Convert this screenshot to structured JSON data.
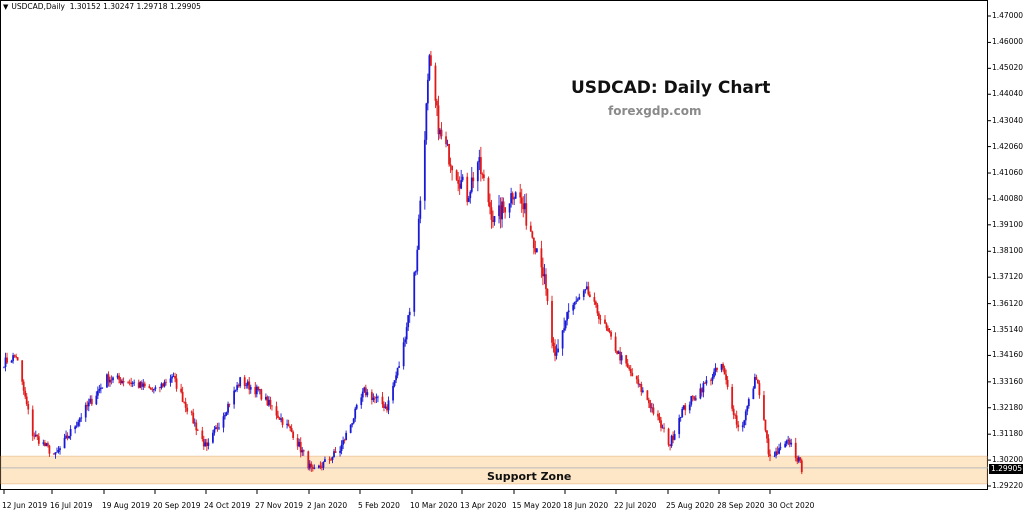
{
  "header": {
    "symbol": "USDCAD,Daily",
    "ohlc": "1.30152 1.30247 1.29718 1.29905"
  },
  "watermark": {
    "title": "USDCAD: Daily Chart",
    "site": "forexgdp.com"
  },
  "support_zone_label": "Support Zone",
  "current_price_label": "1.29905",
  "colors": {
    "bull": "#1a1ad6",
    "bear": "#e01818",
    "zone": "#fde7c7",
    "zone_border": "#e7b98a",
    "price_line": "#b8b8b8"
  },
  "y_ticks": [
    "1.47000",
    "1.46000",
    "1.45020",
    "1.44040",
    "1.43040",
    "1.42060",
    "1.41060",
    "1.40080",
    "1.39100",
    "1.38100",
    "1.37120",
    "1.36120",
    "1.35140",
    "1.34160",
    "1.33160",
    "1.32180",
    "1.31180",
    "1.30200",
    "1.29220"
  ],
  "x_ticks": [
    "12 Jun 2019",
    "16 Jul 2019",
    "19 Aug 2019",
    "20 Sep 2019",
    "24 Oct 2019",
    "27 Nov 2019",
    "2 Jan 2020",
    "5 Feb 2020",
    "10 Mar 2020",
    "13 Apr 2020",
    "15 May 2020",
    "18 Jun 2020",
    "22 Jul 2020",
    "25 Aug 2020",
    "28 Sep 2020",
    "30 Oct 2020"
  ],
  "chart_data": {
    "type": "candlestick",
    "symbol": "USDCAD",
    "timeframe": "Daily",
    "ylim": [
      1.2922,
      1.475
    ],
    "grid": false,
    "last_bar": {
      "open": 1.30152,
      "high": 1.30247,
      "low": 1.29718,
      "close": 1.29905
    },
    "current_price": 1.29905,
    "support_zone": [
      1.293,
      1.3035
    ],
    "approx_close_path": [
      [
        "12 Jun 2019",
        1.339
      ],
      [
        "20 Jun 2019",
        1.3415
      ],
      [
        "1 Jul 2019",
        1.312
      ],
      [
        "16 Jul 2019",
        1.3035
      ],
      [
        "1 Aug 2019",
        1.318
      ],
      [
        "19 Aug 2019",
        1.333
      ],
      [
        "1 Sep 2019",
        1.332
      ],
      [
        "20 Sep 2019",
        1.328
      ],
      [
        "1 Oct 2019",
        1.334
      ],
      [
        "24 Oct 2019",
        1.306
      ],
      [
        "1 Nov 2019",
        1.316
      ],
      [
        "15 Nov 2019",
        1.332
      ],
      [
        "27 Nov 2019",
        1.328
      ],
      [
        "20 Dec 2019",
        1.312
      ],
      [
        "2 Jan 2020",
        1.297
      ],
      [
        "20 Jan 2020",
        1.306
      ],
      [
        "5 Feb 2020",
        1.328
      ],
      [
        "20 Feb 2020",
        1.322
      ],
      [
        "1 Mar 2020",
        1.342
      ],
      [
        "10 Mar 2020",
        1.375
      ],
      [
        "19 Mar 2020",
        1.452
      ],
      [
        "26 Mar 2020",
        1.425
      ],
      [
        "13 Apr 2020",
        1.402
      ],
      [
        "20 Apr 2020",
        1.415
      ],
      [
        "1 May 2020",
        1.392
      ],
      [
        "15 May 2020",
        1.405
      ],
      [
        "1 Jun 2020",
        1.378
      ],
      [
        "10 Jun 2020",
        1.338
      ],
      [
        "18 Jun 2020",
        1.358
      ],
      [
        "1 Jul 2020",
        1.366
      ],
      [
        "22 Jul 2020",
        1.342
      ],
      [
        "10 Aug 2020",
        1.325
      ],
      [
        "25 Aug 2020",
        1.308
      ],
      [
        "1 Sep 2020",
        1.32
      ],
      [
        "28 Sep 2020",
        1.338
      ],
      [
        "10 Oct 2020",
        1.312
      ],
      [
        "21 Oct 2020",
        1.334
      ],
      [
        "30 Oct 2020",
        1.302
      ],
      [
        "12 Nov 2020",
        1.309
      ],
      [
        "20 Nov 2020",
        1.299
      ]
    ]
  }
}
